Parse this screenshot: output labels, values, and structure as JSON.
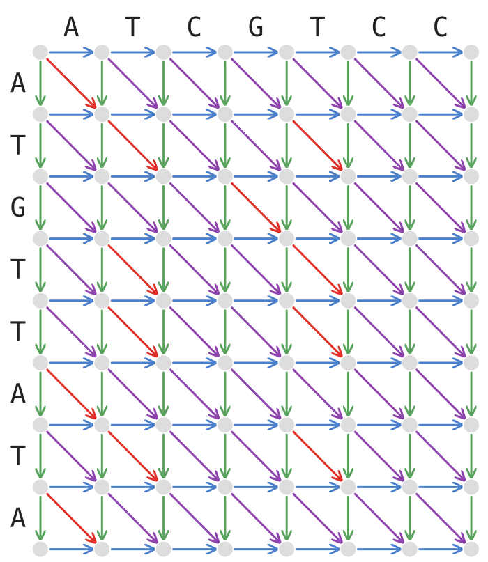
{
  "diagram": {
    "top_sequence": [
      "A",
      "T",
      "C",
      "G",
      "T",
      "C",
      "C"
    ],
    "left_sequence": [
      "A",
      "T",
      "G",
      "T",
      "T",
      "A",
      "T",
      "A"
    ],
    "match_rule": "diagonal edge is red when row letter equals column letter, purple otherwise",
    "colors": {
      "horizontal_edge": "#4a7fcb",
      "vertical_edge": "#5aa35e",
      "mismatch_diagonal": "#8e44ad",
      "match_diagonal": "#e0302a",
      "node": "#dddddd",
      "letter": "#222222"
    }
  }
}
